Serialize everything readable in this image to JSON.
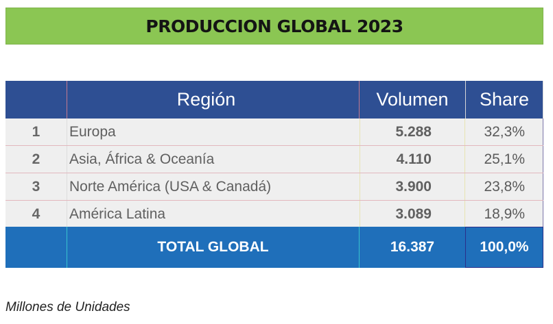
{
  "title": "PRODUCCION GLOBAL 2023",
  "table": {
    "headers": {
      "number": "",
      "region": "Región",
      "volume": "Volumen",
      "share": "Share"
    },
    "rows": [
      {
        "number": "1",
        "region": "Europa",
        "volume": "5.288",
        "share": "32,3%"
      },
      {
        "number": "2",
        "region": "Asia, África & Oceanía",
        "volume": "4.110",
        "share": "25,1%"
      },
      {
        "number": "3",
        "region": "Norte América (USA & Canadá)",
        "volume": "3.900",
        "share": "23,8%"
      },
      {
        "number": "4",
        "region": "América Latina",
        "volume": "3.089",
        "share": "18,9%"
      }
    ],
    "total": {
      "number": "",
      "region": "TOTAL GLOBAL",
      "volume": "16.387",
      "share": "100,0%"
    }
  },
  "footnote": "Millones de Unidades",
  "colors": {
    "title_background": "#8bc653",
    "header_background": "#2e4f93",
    "row_background": "#efefef",
    "total_background": "#1f6fba"
  }
}
